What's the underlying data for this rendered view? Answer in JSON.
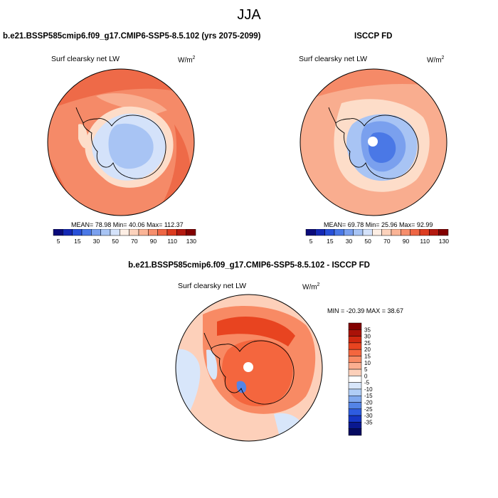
{
  "title": "JJA",
  "panels": [
    {
      "title": "b.e21.BSSP585cmip6.f09_g17.CMIP6-SSP5-8.5.102 (yrs 2075-2099)",
      "variable": "Surf clearsky net LW",
      "units": "W/m",
      "units_exp": "2",
      "stats": "MEAN=  78.98  Min=  40.06  Max= 112.37"
    },
    {
      "title": "ISCCP FD",
      "variable": "Surf clearsky net LW",
      "units": "W/m",
      "units_exp": "2",
      "stats": "MEAN=  69.78  Min=  25.96  Max=  92.99"
    },
    {
      "title": "b.e21.BSSP585cmip6.f09_g17.CMIP6-SSP5-8.5.102 - ISCCP FD",
      "variable": "Surf clearsky net LW",
      "units": "W/m",
      "units_exp": "2",
      "stats": "MIN = -20.39 MAX =  38.67"
    }
  ],
  "colorbar_horizontal": {
    "colors": [
      "#0a0a7a",
      "#1428b4",
      "#2850d8",
      "#4a78e6",
      "#7aa0ee",
      "#a8c4f4",
      "#d4e2fa",
      "#fdeee4",
      "#fcd2bc",
      "#fab496",
      "#f68e6c",
      "#ee6644",
      "#dc3c20",
      "#b41a10",
      "#820000"
    ],
    "labels": [
      "5",
      "15",
      "30",
      "50",
      "70",
      "90",
      "110",
      "130"
    ]
  },
  "colorbar_vertical": {
    "colors": [
      "#820000",
      "#aa1208",
      "#d02810",
      "#e84420",
      "#f4663e",
      "#f88a64",
      "#fbae90",
      "#fdd0ba",
      "#ffffff",
      "#d8e6fa",
      "#b0cdf6",
      "#80a8ee",
      "#5484e6",
      "#2e5ce0",
      "#1636c4",
      "#0a1890",
      "#050a60"
    ],
    "labels": [
      "35",
      "30",
      "25",
      "20",
      "15",
      "10",
      "5",
      "0",
      "-5",
      "-10",
      "-15",
      "-20",
      "-25",
      "-30",
      "-35"
    ]
  },
  "map_colors": {
    "warm_dark": "#ee6a48",
    "warm_mid": "#f58a68",
    "warm_light": "#f9ad8f",
    "pale": "#fdddc9",
    "cold_light": "#d4e2fa",
    "cold_mid": "#a8c4f4",
    "cold_dark": "#7aa0ee",
    "cold_deeper": "#4a78e6"
  }
}
